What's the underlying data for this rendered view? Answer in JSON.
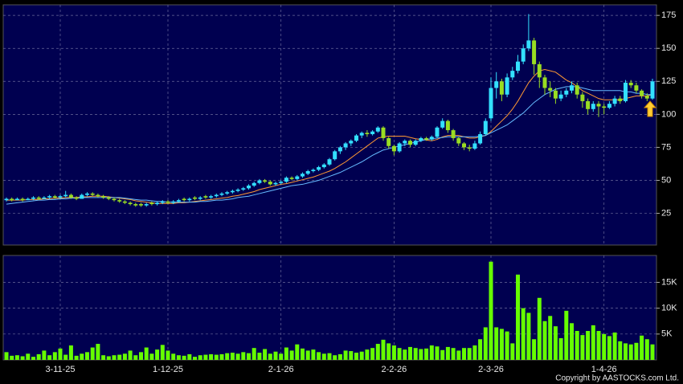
{
  "chart_data": [
    {
      "type": "candlestick",
      "up_color": "#33e0ff",
      "down_color": "#99dd22",
      "grid": true,
      "ylim": [
        1,
        183
      ],
      "yticks": [
        25,
        50,
        75,
        100,
        125,
        150,
        175
      ],
      "open": [
        35,
        36,
        35,
        36,
        35,
        36,
        37,
        36,
        37,
        38,
        37,
        38,
        39,
        37,
        36,
        39,
        40,
        39,
        38,
        37,
        36,
        35,
        34,
        33,
        32,
        32,
        31,
        33,
        32,
        33,
        34,
        33,
        34,
        36,
        35,
        37,
        36,
        38,
        37,
        38,
        39,
        40,
        41,
        42,
        43,
        44,
        46,
        48,
        50,
        49,
        47,
        48,
        49,
        52,
        51,
        53,
        55,
        57,
        58,
        60,
        62,
        66,
        72,
        75,
        78,
        80,
        84,
        86,
        85,
        87,
        90,
        82,
        76,
        72,
        78,
        80,
        77,
        80,
        82,
        81,
        83,
        90,
        95,
        88,
        82,
        78,
        75,
        74,
        78,
        85,
        97,
        120,
        125,
        115,
        128,
        133,
        140,
        150,
        156,
        138,
        128,
        120,
        118,
        112,
        115,
        118,
        122,
        115,
        110,
        104,
        108,
        106,
        105,
        108,
        112,
        110,
        124,
        122,
        118,
        114,
        112
      ],
      "high": [
        37,
        37,
        37,
        37,
        37,
        38,
        38,
        38,
        39,
        39,
        39,
        42,
        40,
        38,
        40,
        41,
        41,
        40,
        39,
        38,
        37,
        36,
        35,
        34,
        33,
        33,
        33,
        34,
        34,
        35,
        35,
        35,
        36,
        37,
        37,
        38,
        38,
        39,
        39,
        40,
        41,
        42,
        43,
        44,
        45,
        47,
        49,
        51,
        51,
        50,
        49,
        50,
        53,
        53,
        54,
        56,
        58,
        59,
        61,
        63,
        67,
        73,
        76,
        79,
        81,
        85,
        87,
        88,
        88,
        91,
        91,
        83,
        77,
        79,
        81,
        81,
        81,
        83,
        83,
        84,
        91,
        97,
        96,
        89,
        83,
        79,
        77,
        80,
        87,
        97,
        128,
        132,
        127,
        131,
        136,
        145,
        153,
        176,
        158,
        140,
        130,
        125,
        120,
        118,
        120,
        125,
        124,
        117,
        112,
        110,
        110,
        108,
        110,
        114,
        114,
        126,
        126,
        124,
        119,
        116,
        127
      ],
      "low": [
        34,
        34,
        35,
        34,
        35,
        35,
        35,
        36,
        36,
        36,
        36,
        37,
        36,
        35,
        36,
        38,
        38,
        37,
        36,
        35,
        34,
        33,
        32,
        31,
        30,
        30,
        30,
        31,
        31,
        32,
        32,
        32,
        33,
        34,
        34,
        35,
        35,
        36,
        36,
        37,
        38,
        39,
        40,
        41,
        42,
        43,
        45,
        47,
        48,
        46,
        46,
        47,
        48,
        50,
        50,
        52,
        54,
        56,
        57,
        59,
        61,
        65,
        70,
        73,
        76,
        79,
        82,
        83,
        84,
        86,
        80,
        74,
        69,
        71,
        76,
        75,
        76,
        79,
        80,
        80,
        82,
        89,
        86,
        80,
        76,
        73,
        72,
        73,
        77,
        84,
        95,
        112,
        110,
        113,
        126,
        131,
        138,
        148,
        130,
        120,
        115,
        113,
        108,
        110,
        113,
        116,
        112,
        105,
        100,
        102,
        98,
        100,
        104,
        106,
        108,
        109,
        120,
        116,
        112,
        110,
        111
      ],
      "close": [
        36,
        35,
        36,
        35,
        36,
        37,
        36,
        37,
        38,
        37,
        38,
        39,
        37,
        36,
        39,
        40,
        39,
        38,
        37,
        36,
        35,
        34,
        33,
        32,
        31,
        31,
        32,
        32,
        33,
        34,
        33,
        34,
        35,
        35,
        36,
        36,
        37,
        37,
        38,
        39,
        40,
        41,
        42,
        43,
        44,
        46,
        48,
        50,
        49,
        47,
        48,
        49,
        52,
        51,
        53,
        55,
        57,
        58,
        60,
        62,
        66,
        72,
        75,
        78,
        80,
        84,
        86,
        85,
        87,
        90,
        82,
        76,
        72,
        78,
        80,
        77,
        80,
        82,
        81,
        83,
        90,
        95,
        88,
        82,
        78,
        75,
        74,
        78,
        85,
        95,
        120,
        125,
        115,
        128,
        133,
        140,
        150,
        156,
        138,
        128,
        120,
        118,
        112,
        115,
        118,
        122,
        115,
        110,
        104,
        108,
        106,
        105,
        108,
        112,
        110,
        124,
        122,
        118,
        114,
        112,
        125
      ],
      "series": [
        {
          "color": "#ff9933",
          "values": [
            35,
            35,
            35,
            35,
            35.5,
            35.5,
            35.5,
            36,
            36,
            36.5,
            36.5,
            37,
            37,
            37,
            37.5,
            37.5,
            38,
            38,
            38,
            37.5,
            37,
            36.5,
            36,
            35.5,
            34.5,
            34,
            33.5,
            33,
            32.5,
            32.5,
            32.5,
            32.5,
            33,
            33,
            33.5,
            34,
            34.5,
            35,
            35.5,
            36,
            36.5,
            37,
            38,
            38.5,
            39.5,
            40.5,
            41.5,
            43,
            44,
            45,
            46,
            47,
            47.5,
            48.5,
            49.5,
            50.5,
            51.5,
            52.5,
            54,
            55.5,
            57,
            59,
            61.5,
            64,
            67,
            70,
            73,
            76,
            79,
            82,
            83,
            83.5,
            83.5,
            83.5,
            83.5,
            82.5,
            81.5,
            81,
            80.5,
            80,
            81,
            83,
            84,
            84,
            84,
            83,
            82,
            82,
            83,
            84,
            87,
            91,
            95,
            99,
            104,
            110,
            117,
            124,
            129,
            133,
            134,
            133,
            132,
            129,
            126,
            124,
            121,
            118,
            116,
            114,
            112,
            111,
            111,
            111,
            111,
            112,
            113,
            114,
            114,
            114,
            115
          ]
        },
        {
          "color": "#66bbff",
          "values": [
            32,
            32.5,
            33,
            33.5,
            34,
            34.5,
            35,
            35,
            35.5,
            35.5,
            36,
            36,
            36.5,
            36.5,
            37,
            37,
            37,
            37,
            37,
            37,
            37,
            37,
            36.5,
            36,
            35.5,
            35,
            35,
            34.5,
            34,
            34,
            33.5,
            33.5,
            33.5,
            33.5,
            33.5,
            33.5,
            34,
            34,
            34.5,
            35,
            35,
            35.5,
            36,
            37,
            37.5,
            38,
            39,
            40,
            41,
            42,
            43,
            44,
            45,
            46,
            46.5,
            47,
            48,
            49,
            50,
            51.5,
            53,
            54.5,
            56,
            58,
            60,
            62,
            64,
            66.5,
            69,
            71,
            73,
            74,
            75,
            76,
            77,
            78,
            79,
            80,
            81,
            81.5,
            82,
            82.5,
            83,
            83,
            83,
            83,
            83,
            83,
            83.5,
            84,
            86,
            88,
            90,
            92,
            95,
            98,
            101,
            105,
            109,
            112,
            115,
            117,
            119,
            120,
            121,
            121,
            121,
            120,
            119,
            118,
            118,
            118,
            118,
            118,
            118,
            117,
            117,
            116,
            116,
            115,
            115
          ]
        }
      ]
    },
    {
      "type": "bar",
      "color": "#66ff00",
      "grid": true,
      "ylim": [
        0,
        20200
      ],
      "yticks": [
        {
          "value": 5000,
          "label": "5K"
        },
        {
          "value": 10000,
          "label": "10K"
        },
        {
          "value": 15000,
          "label": "15K"
        }
      ],
      "categories": [
        null,
        null,
        null,
        null,
        null,
        null,
        null,
        null,
        null,
        null,
        "3-11-25",
        null,
        null,
        null,
        null,
        null,
        null,
        null,
        null,
        null,
        null,
        null,
        null,
        null,
        null,
        null,
        null,
        null,
        null,
        null,
        "1-12-25",
        null,
        null,
        null,
        null,
        null,
        null,
        null,
        null,
        null,
        null,
        null,
        null,
        null,
        null,
        null,
        null,
        null,
        null,
        null,
        null,
        "2-1-26",
        null,
        null,
        null,
        null,
        null,
        null,
        null,
        null,
        null,
        null,
        null,
        null,
        null,
        null,
        null,
        null,
        null,
        null,
        null,
        null,
        "2-2-26",
        null,
        null,
        null,
        null,
        null,
        null,
        null,
        null,
        null,
        null,
        null,
        null,
        null,
        null,
        null,
        null,
        null,
        "2-3-26",
        null,
        null,
        null,
        null,
        null,
        null,
        null,
        null,
        null,
        null,
        null,
        null,
        null,
        null,
        null,
        null,
        null,
        null,
        null,
        null,
        "1-4-26",
        null,
        null,
        null,
        null,
        null,
        null,
        null,
        null,
        null
      ],
      "values": [
        1500,
        800,
        900,
        700,
        1200,
        600,
        1100,
        1800,
        900,
        1500,
        2200,
        1000,
        2800,
        800,
        1200,
        1500,
        2400,
        3100,
        900,
        700,
        900,
        1000,
        1200,
        1800,
        900,
        1500,
        2400,
        1200,
        2000,
        2900,
        1800,
        1200,
        900,
        800,
        1100,
        600,
        900,
        1000,
        1100,
        1000,
        1100,
        1300,
        1400,
        1200,
        1500,
        1300,
        2300,
        1400,
        2100,
        1200,
        1600,
        1200,
        2400,
        1800,
        3000,
        2200,
        1800,
        2000,
        1500,
        1200,
        1300,
        900,
        1100,
        1800,
        1700,
        1400,
        1600,
        2000,
        2300,
        3100,
        3900,
        3200,
        2800,
        2300,
        2000,
        2500,
        2300,
        2100,
        2200,
        2800,
        2600,
        1900,
        2500,
        2300,
        1800,
        2300,
        2300,
        2800,
        4000,
        6300,
        19000,
        6300,
        6000,
        5500,
        3200,
        16500,
        10000,
        9100,
        4000,
        12000,
        7500,
        8500,
        6500,
        4200,
        9500,
        7100,
        5600,
        4800,
        5600,
        6700,
        5600,
        5000,
        4600,
        5300,
        3600,
        3200,
        3000,
        3300,
        4700,
        4000,
        3000
      ]
    }
  ],
  "footer": "Copyright by AASTOCKS.com Ltd."
}
